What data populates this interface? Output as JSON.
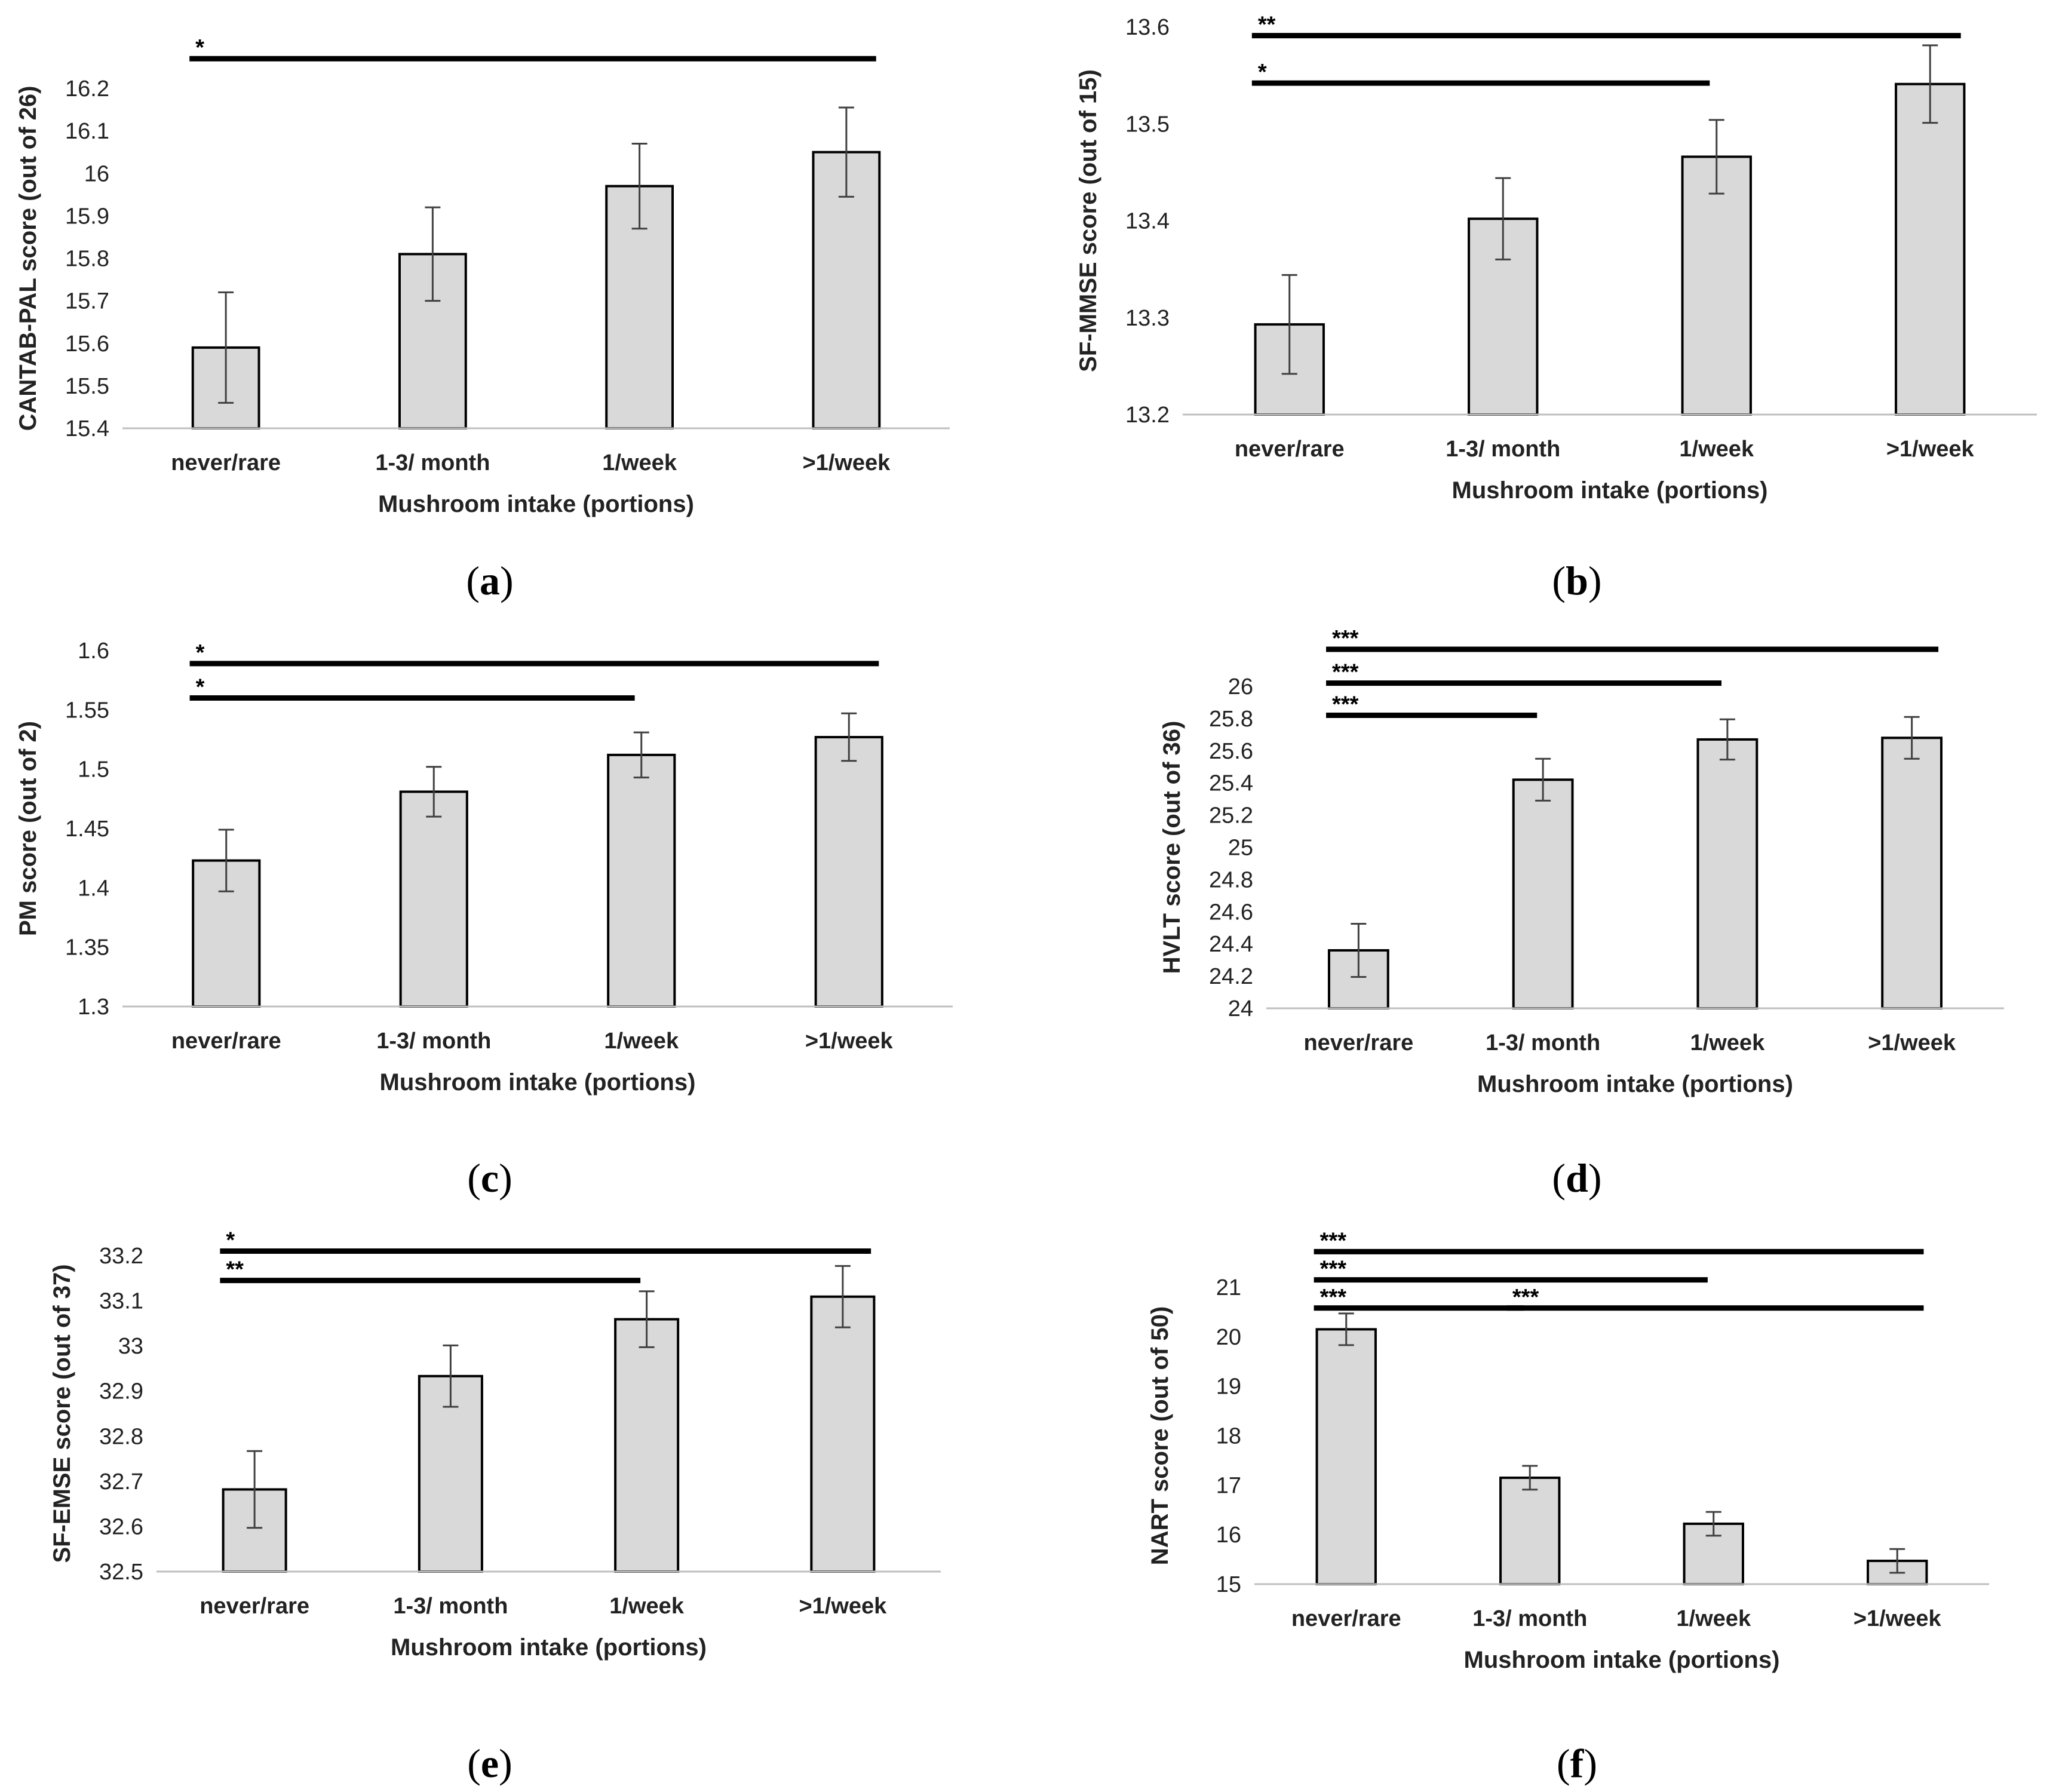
{
  "figure": {
    "shared_xlabel": "Mushroom intake (portions)",
    "colors": {
      "bar_fill": "#d9d9d9",
      "bar_stroke": "#000000",
      "axis": "#bfbfbf",
      "error_bar": "#404040",
      "sig_line": "#000000"
    }
  },
  "chart_data": [
    {
      "panel": "a",
      "panel_label": [
        "(",
        "a",
        ")"
      ],
      "type": "bar",
      "title": "",
      "xlabel": "Mushroom intake (portions)",
      "ylabel": "CANTAB-PAL score (out of 26)",
      "categories": [
        "never/rare",
        "1-3/ month",
        "1/week",
        ">1/week"
      ],
      "values": [
        15.59,
        15.81,
        15.97,
        16.05
      ],
      "errors": [
        0.13,
        0.11,
        0.1,
        0.105
      ],
      "ylim": [
        15.4,
        16.2
      ],
      "yticks": [
        15.4,
        15.5,
        15.6,
        15.7,
        15.8,
        15.9,
        16,
        16.1,
        16.2
      ],
      "ytick_labels": [
        "15.4",
        "15.5",
        "15.6",
        "15.7",
        "15.8",
        "15.9",
        "16",
        "16.1",
        "16.2"
      ],
      "significance": [
        {
          "from": 0,
          "to": 3,
          "label": "*",
          "level": 16.27
        }
      ]
    },
    {
      "panel": "b",
      "panel_label": [
        "(",
        "b",
        ")"
      ],
      "type": "bar",
      "title": "",
      "xlabel": "Mushroom intake (portions)",
      "ylabel": "SF-MMSE score (out of 15)",
      "categories": [
        "never/rare",
        "1-3/ month",
        "1/week",
        ">1/week"
      ],
      "values": [
        13.293,
        13.402,
        13.466,
        13.541
      ],
      "errors": [
        0.051,
        0.042,
        0.038,
        0.04
      ],
      "ylim": [
        13.2,
        13.6
      ],
      "yticks": [
        13.2,
        13.3,
        13.4,
        13.5,
        13.6
      ],
      "ytick_labels": [
        "13.2",
        "13.3",
        "13.4",
        "13.5",
        "13.6"
      ],
      "significance": [
        {
          "from": 0,
          "to": 3,
          "label": "**",
          "level": 13.591
        },
        {
          "from": 0,
          "to": 2,
          "label": "*",
          "level": 13.542
        }
      ]
    },
    {
      "panel": "c",
      "panel_label": [
        "(",
        "c",
        ")"
      ],
      "type": "bar",
      "title": "",
      "xlabel": "Mushroom intake (portions)",
      "ylabel": "PM score (out of 2)",
      "categories": [
        "never/rare",
        "1-3/ month",
        "1/week",
        ">1/week"
      ],
      "values": [
        1.423,
        1.481,
        1.512,
        1.527
      ],
      "errors": [
        0.026,
        0.021,
        0.019,
        0.02
      ],
      "ylim": [
        1.3,
        1.6
      ],
      "yticks": [
        1.3,
        1.35,
        1.4,
        1.45,
        1.5,
        1.55,
        1.6
      ],
      "ytick_labels": [
        "1.3",
        "1.35",
        "1.4",
        "1.45",
        "1.5",
        "1.55",
        "1.6"
      ],
      "significance": [
        {
          "from": 0,
          "to": 3,
          "label": "*",
          "level": 1.589
        },
        {
          "from": 0,
          "to": 2,
          "label": "*",
          "level": 1.56
        }
      ]
    },
    {
      "panel": "d",
      "panel_label": [
        "(",
        "d",
        ")"
      ],
      "type": "bar",
      "title": "",
      "xlabel": "Mushroom intake (portions)",
      "ylabel": "HVLT score (out of 36)",
      "categories": [
        "never/rare",
        "1-3/ month",
        "1/week",
        ">1/week"
      ],
      "values": [
        24.36,
        25.42,
        25.67,
        25.68
      ],
      "errors": [
        0.165,
        0.13,
        0.125,
        0.13
      ],
      "ylim": [
        24,
        26
      ],
      "yticks": [
        24,
        24.2,
        24.4,
        24.6,
        24.8,
        25,
        25.2,
        25.4,
        25.6,
        25.8,
        26
      ],
      "ytick_labels": [
        "24",
        "24.2",
        "24.4",
        "24.6",
        "24.8",
        "25",
        "25.2",
        "25.4",
        "25.6",
        "25.8",
        "26"
      ],
      "significance": [
        {
          "from": 0,
          "to": 3,
          "label": "***",
          "level": 26.23
        },
        {
          "from": 0,
          "to": 2,
          "label": "***",
          "level": 26.02
        },
        {
          "from": 0,
          "to": 1,
          "label": "***",
          "level": 25.82
        }
      ]
    },
    {
      "panel": "e",
      "panel_label": [
        "(",
        "e",
        ")"
      ],
      "type": "bar",
      "title": "",
      "xlabel": "Mushroom intake (portions)",
      "ylabel": "SF-EMSE score (out of 37)",
      "categories": [
        "never/rare",
        "1-3/ month",
        "1/week",
        ">1/week"
      ],
      "values": [
        32.682,
        32.933,
        33.059,
        33.109
      ],
      "errors": [
        0.085,
        0.068,
        0.062,
        0.068
      ],
      "ylim": [
        32.5,
        33.2
      ],
      "yticks": [
        32.5,
        32.6,
        32.7,
        32.8,
        32.9,
        33,
        33.1,
        33.2
      ],
      "ytick_labels": [
        "32.5",
        "32.6",
        "32.7",
        "32.8",
        "32.9",
        "33",
        "33.1",
        "33.2"
      ],
      "significance": [
        {
          "from": 0,
          "to": 3,
          "label": "*",
          "level": 33.21
        },
        {
          "from": 0,
          "to": 2,
          "label": "**",
          "level": 33.145
        }
      ]
    },
    {
      "panel": "f",
      "panel_label": [
        "(",
        "f",
        ")"
      ],
      "type": "bar",
      "title": "",
      "xlabel": "Mushroom intake (portions)",
      "ylabel": "NART score (out of 50)",
      "categories": [
        "never/rare",
        "1-3/ month",
        "1/week",
        ">1/week"
      ],
      "values": [
        20.15,
        17.15,
        16.22,
        15.47
      ],
      "errors": [
        0.32,
        0.24,
        0.24,
        0.24
      ],
      "ylim": [
        15,
        21
      ],
      "yticks": [
        15,
        16,
        17,
        18,
        19,
        20,
        21
      ],
      "ytick_labels": [
        "15",
        "16",
        "17",
        "18",
        "19",
        "20",
        "21"
      ],
      "significance": [
        {
          "from": 0,
          "to": 3,
          "label": "***",
          "level": 21.72
        },
        {
          "from": 0,
          "to": 2,
          "label": "***",
          "level": 21.15
        },
        {
          "from": 0,
          "to": 1,
          "label": "***",
          "level": 20.58
        },
        {
          "from": 1,
          "to": 3,
          "label": "***",
          "level": 20.58
        }
      ]
    }
  ]
}
